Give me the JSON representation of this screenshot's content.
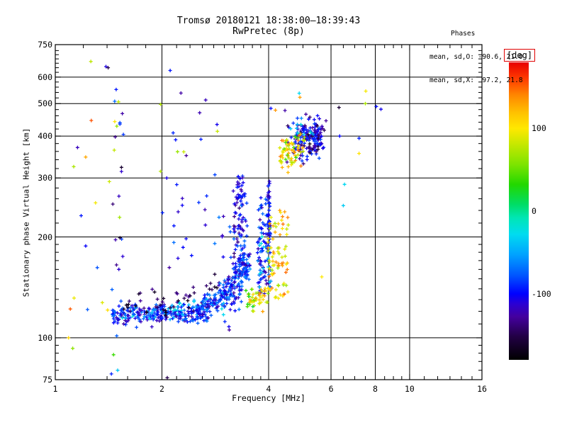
{
  "header": {
    "title": "Tromsø 20180121 18:38:00–18:39:43",
    "subtitle": "RwPretec (8p)",
    "stats": {
      "heading": "Phases",
      "line_o": "mean, sd,O: -90.6, 21.0",
      "line_x": "mean, sd,X:  97.2, 21.8"
    }
  },
  "chart_data": {
    "type": "scatter",
    "title": "Tromsø 20180121 18:38:00–18:39:43",
    "subtitle": "RwPretec (8p)",
    "xlabel": "Frequency [MHz]",
    "ylabel": "Stationary phase Virtual Height [km]",
    "x_scale": "log",
    "x_range": [
      1,
      16
    ],
    "y_scale": "log",
    "y_range": [
      75,
      750
    ],
    "x_ticks_major": [
      1,
      2,
      4,
      6,
      8,
      10,
      16
    ],
    "x_tick_labels": [
      "1",
      "2",
      "4",
      "6",
      "8",
      "10",
      "16"
    ],
    "x_ticks_minor": [
      1.2,
      1.4,
      1.6,
      1.8,
      2.2,
      2.4,
      2.6,
      2.8,
      3,
      3.2,
      3.4,
      3.6,
      3.8,
      4.5,
      5,
      5.5,
      6.5,
      7,
      7.5,
      8.5,
      9,
      9.5,
      11,
      12,
      13,
      14,
      15
    ],
    "y_ticks_major": [
      75,
      100,
      200,
      300,
      400,
      500,
      600,
      750
    ],
    "y_tick_labels": [
      "75",
      "100",
      "200",
      "300",
      "400",
      "500",
      "600",
      "750"
    ],
    "y_ticks_minor": [
      80,
      85,
      90,
      95,
      110,
      120,
      130,
      140,
      150,
      160,
      170,
      180,
      190,
      220,
      240,
      260,
      280,
      320,
      340,
      360,
      380,
      420,
      440,
      460,
      480,
      520,
      540,
      560,
      580,
      620,
      640,
      660,
      680,
      700,
      720
    ],
    "x_grid": [
      2,
      4,
      6,
      8,
      10
    ],
    "y_grid": [
      100,
      200,
      300,
      400,
      500,
      600
    ],
    "grid_color": "#000000",
    "marker": "plus",
    "colorbar": {
      "label": "[deg]",
      "label_box_color": "#e00000",
      "range": [
        -180,
        180
      ],
      "ticks": [
        {
          "value": 100,
          "label": "100"
        },
        {
          "value": 0,
          "label": "0"
        },
        {
          "value": -100,
          "label": "-100"
        }
      ],
      "stops": [
        [
          -180,
          "#000000"
        ],
        [
          -152,
          "#220044"
        ],
        [
          -128,
          "#44009e"
        ],
        [
          -112,
          "#2a00d4"
        ],
        [
          -100,
          "#0000ff"
        ],
        [
          -78,
          "#0055ff"
        ],
        [
          -52,
          "#00a4ff"
        ],
        [
          -28,
          "#00dcf0"
        ],
        [
          -8,
          "#00e6b4"
        ],
        [
          8,
          "#00dd66"
        ],
        [
          32,
          "#22d800"
        ],
        [
          56,
          "#7ce400"
        ],
        [
          84,
          "#cfe800"
        ],
        [
          100,
          "#ffe800"
        ],
        [
          118,
          "#ffc400"
        ],
        [
          140,
          "#ff8800"
        ],
        [
          160,
          "#ff3c00"
        ],
        [
          180,
          "#e80000"
        ]
      ]
    },
    "seed": 7,
    "clusters": [
      {
        "name": "e-band-core",
        "n": 210,
        "f": [
          1.45,
          2.55
        ],
        "hc": [
          116,
          119
        ],
        "hs": 3.5,
        "p": [
          -125,
          -65
        ]
      },
      {
        "name": "e-band-cyan",
        "n": 45,
        "f": [
          1.5,
          3.0
        ],
        "hc": [
          114,
          128
        ],
        "hs": 4,
        "p": [
          -55,
          -20
        ]
      },
      {
        "name": "e-band-dark",
        "n": 55,
        "f": [
          1.55,
          3.0
        ],
        "hc": [
          122,
          142
        ],
        "hs": 7,
        "p": [
          -168,
          -126
        ]
      },
      {
        "name": "e-band-rise",
        "n": 115,
        "f": [
          2.5,
          3.05
        ],
        "hc": [
          118,
          136
        ],
        "hs": 6,
        "p": [
          -120,
          -55
        ]
      },
      {
        "name": "cusp-rise",
        "n": 140,
        "f": [
          3.0,
          3.55
        ],
        "hc": [
          133,
          168
        ],
        "hs": 12,
        "p": [
          -130,
          -55
        ]
      },
      {
        "name": "spread-column-3p3",
        "n": 85,
        "f": [
          3.18,
          3.48
        ],
        "h": [
          155,
          275
        ],
        "p": [
          -140,
          -70
        ]
      },
      {
        "name": "spread-column-top",
        "n": 20,
        "f": [
          3.26,
          3.4
        ],
        "h": [
          260,
          305
        ],
        "p": [
          -130,
          -85
        ]
      },
      {
        "name": "column-4mhz",
        "n": 95,
        "f": [
          3.72,
          4.06
        ],
        "h": [
          135,
          265
        ],
        "p": [
          -130,
          -60
        ]
      },
      {
        "name": "column-4mhz-line",
        "n": 32,
        "f": [
          3.96,
          4.03
        ],
        "h": [
          185,
          305
        ],
        "p": [
          -120,
          -85
        ]
      },
      {
        "name": "column-4mhz-cyan",
        "n": 12,
        "f": [
          3.75,
          4.05
        ],
        "h": [
          140,
          220
        ],
        "p": [
          -45,
          -15
        ]
      },
      {
        "name": "yellow-band",
        "n": 40,
        "f": [
          3.5,
          3.98
        ],
        "hc": [
          128,
          134
        ],
        "hs": 5,
        "p": [
          65,
          140
        ]
      },
      {
        "name": "green-accents",
        "n": 9,
        "f": [
          3.44,
          3.66
        ],
        "h": [
          122,
          140
        ],
        "p": [
          15,
          55
        ]
      },
      {
        "name": "orange-column",
        "n": 78,
        "f": [
          3.98,
          4.55
        ],
        "h": [
          131,
          238
        ],
        "p": [
          60,
          150
        ]
      },
      {
        "name": "mid-sparse",
        "n": 26,
        "f": [
          2.0,
          3.2
        ],
        "h": [
          150,
          300
        ],
        "p": [
          -130,
          -60
        ]
      },
      {
        "name": "upper-sparse-blue",
        "n": 9,
        "f": [
          1.9,
          3.1
        ],
        "h": [
          300,
          540
        ],
        "p": [
          -130,
          -80
        ]
      },
      {
        "name": "upper-sparse-warm",
        "n": 5,
        "f": [
          1.95,
          3.0
        ],
        "h": [
          300,
          520
        ],
        "p": [
          55,
          110
        ]
      },
      {
        "name": "f-region-blue-core",
        "n": 135,
        "f": [
          4.75,
          5.75
        ],
        "hc": [
          390,
          400
        ],
        "hs": 22,
        "p": [
          -135,
          -75
        ]
      },
      {
        "name": "f-region-blue-halo",
        "n": 35,
        "f": [
          4.5,
          5.95
        ],
        "h": [
          330,
          465
        ],
        "p": [
          -150,
          -80
        ]
      },
      {
        "name": "f-region-dark",
        "n": 18,
        "f": [
          4.8,
          5.6
        ],
        "hc": [
          385,
          395
        ],
        "hs": 20,
        "p": [
          -172,
          -136
        ]
      },
      {
        "name": "f-region-orange",
        "n": 55,
        "f": [
          4.3,
          5.05
        ],
        "hc": [
          355,
          375
        ],
        "hs": 22,
        "p": [
          70,
          150
        ]
      },
      {
        "name": "f-region-yellow",
        "n": 12,
        "f": [
          4.35,
          4.85
        ],
        "h": [
          330,
          405
        ],
        "p": [
          25,
          85
        ]
      },
      {
        "name": "f-region-cyan",
        "n": 8,
        "f": [
          4.6,
          5.35
        ],
        "h": [
          385,
          450
        ],
        "p": [
          -45,
          -12
        ]
      },
      {
        "name": "interference-column-blue",
        "n": 16,
        "f": [
          1.44,
          1.56
        ],
        "h": [
          100,
          640
        ],
        "p": [
          -125,
          -70
        ]
      },
      {
        "name": "interference-column-dark",
        "n": 5,
        "f": [
          1.44,
          1.55
        ],
        "h": [
          150,
          620
        ],
        "p": [
          -165,
          -130
        ]
      },
      {
        "name": "interference-column-warm",
        "n": 6,
        "f": [
          1.42,
          1.54
        ],
        "h": [
          130,
          660
        ],
        "p": [
          55,
          105
        ]
      },
      {
        "name": "left-singles-warm",
        "n": 5,
        "f": [
          1.04,
          1.42
        ],
        "h": [
          95,
          530
        ],
        "p": [
          60,
          110
        ]
      },
      {
        "name": "left-singles-blue",
        "n": 5,
        "f": [
          1.05,
          1.4
        ],
        "h": [
          100,
          500
        ],
        "p": [
          -120,
          -70
        ]
      },
      {
        "name": "left-singles-orange",
        "n": 3,
        "f": [
          1.08,
          1.38
        ],
        "h": [
          120,
          480
        ],
        "p": [
          120,
          155
        ]
      }
    ],
    "points": [
      [
        4.88,
        537,
        -30
      ],
      [
        4.9,
        522,
        132
      ],
      [
        7.52,
        545,
        97
      ],
      [
        7.5,
        500,
        72
      ],
      [
        6.32,
        487,
        -158
      ],
      [
        8.3,
        481,
        -105
      ],
      [
        8.05,
        490,
        -98
      ],
      [
        6.35,
        400,
        -100
      ],
      [
        7.2,
        394,
        -92
      ],
      [
        7.2,
        355,
        103
      ],
      [
        6.55,
        287,
        -30
      ],
      [
        6.5,
        248,
        -35
      ],
      [
        5.65,
        152,
        100
      ],
      [
        4.06,
        484,
        -100
      ],
      [
        4.18,
        478,
        135
      ],
      [
        4.45,
        477,
        -125
      ],
      [
        1.39,
        645,
        -108
      ],
      [
        1.41,
        640,
        -150
      ],
      [
        1.26,
        668,
        78
      ],
      [
        2.11,
        628,
        -95
      ],
      [
        1.09,
        100,
        108
      ],
      [
        1.12,
        93,
        62
      ],
      [
        1.46,
        89,
        38
      ],
      [
        1.44,
        78,
        -92
      ],
      [
        1.5,
        80,
        -38
      ],
      [
        2.07,
        76,
        -150
      ],
      [
        4.95,
        452,
        -60
      ],
      [
        5.5,
        460,
        -100
      ],
      [
        4.3,
        240,
        130
      ]
    ]
  }
}
